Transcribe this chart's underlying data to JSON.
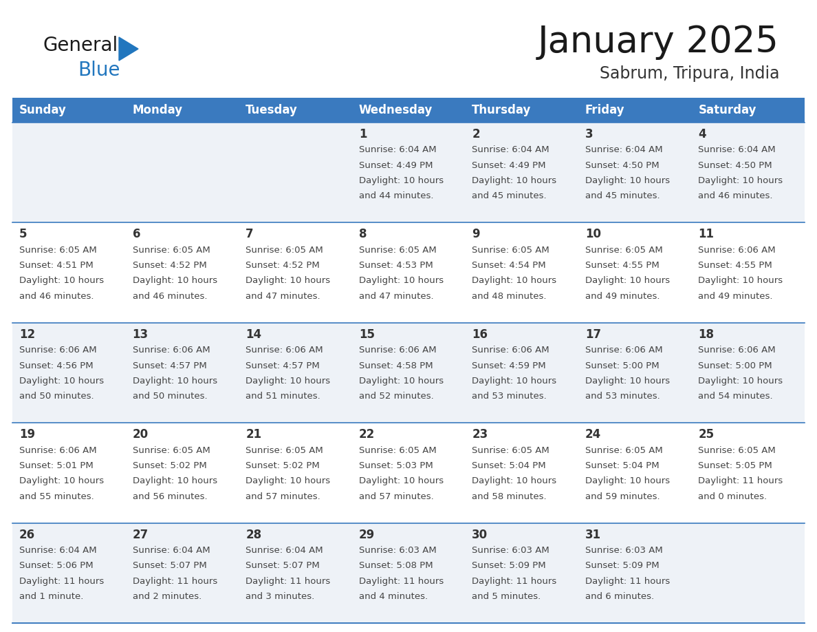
{
  "title": "January 2025",
  "subtitle": "Sabrum, Tripura, India",
  "header_color": "#3a7abf",
  "header_text_color": "#ffffff",
  "cell_bg_even": "#eef2f7",
  "cell_bg_odd": "#ffffff",
  "day_names": [
    "Sunday",
    "Monday",
    "Tuesday",
    "Wednesday",
    "Thursday",
    "Friday",
    "Saturday"
  ],
  "days": [
    {
      "day": 1,
      "col": 3,
      "row": 0,
      "sunrise": "6:04 AM",
      "sunset": "4:49 PM",
      "daylight": "10 hours and 44 minutes."
    },
    {
      "day": 2,
      "col": 4,
      "row": 0,
      "sunrise": "6:04 AM",
      "sunset": "4:49 PM",
      "daylight": "10 hours and 45 minutes."
    },
    {
      "day": 3,
      "col": 5,
      "row": 0,
      "sunrise": "6:04 AM",
      "sunset": "4:50 PM",
      "daylight": "10 hours and 45 minutes."
    },
    {
      "day": 4,
      "col": 6,
      "row": 0,
      "sunrise": "6:04 AM",
      "sunset": "4:50 PM",
      "daylight": "10 hours and 46 minutes."
    },
    {
      "day": 5,
      "col": 0,
      "row": 1,
      "sunrise": "6:05 AM",
      "sunset": "4:51 PM",
      "daylight": "10 hours and 46 minutes."
    },
    {
      "day": 6,
      "col": 1,
      "row": 1,
      "sunrise": "6:05 AM",
      "sunset": "4:52 PM",
      "daylight": "10 hours and 46 minutes."
    },
    {
      "day": 7,
      "col": 2,
      "row": 1,
      "sunrise": "6:05 AM",
      "sunset": "4:52 PM",
      "daylight": "10 hours and 47 minutes."
    },
    {
      "day": 8,
      "col": 3,
      "row": 1,
      "sunrise": "6:05 AM",
      "sunset": "4:53 PM",
      "daylight": "10 hours and 47 minutes."
    },
    {
      "day": 9,
      "col": 4,
      "row": 1,
      "sunrise": "6:05 AM",
      "sunset": "4:54 PM",
      "daylight": "10 hours and 48 minutes."
    },
    {
      "day": 10,
      "col": 5,
      "row": 1,
      "sunrise": "6:05 AM",
      "sunset": "4:55 PM",
      "daylight": "10 hours and 49 minutes."
    },
    {
      "day": 11,
      "col": 6,
      "row": 1,
      "sunrise": "6:06 AM",
      "sunset": "4:55 PM",
      "daylight": "10 hours and 49 minutes."
    },
    {
      "day": 12,
      "col": 0,
      "row": 2,
      "sunrise": "6:06 AM",
      "sunset": "4:56 PM",
      "daylight": "10 hours and 50 minutes."
    },
    {
      "day": 13,
      "col": 1,
      "row": 2,
      "sunrise": "6:06 AM",
      "sunset": "4:57 PM",
      "daylight": "10 hours and 50 minutes."
    },
    {
      "day": 14,
      "col": 2,
      "row": 2,
      "sunrise": "6:06 AM",
      "sunset": "4:57 PM",
      "daylight": "10 hours and 51 minutes."
    },
    {
      "day": 15,
      "col": 3,
      "row": 2,
      "sunrise": "6:06 AM",
      "sunset": "4:58 PM",
      "daylight": "10 hours and 52 minutes."
    },
    {
      "day": 16,
      "col": 4,
      "row": 2,
      "sunrise": "6:06 AM",
      "sunset": "4:59 PM",
      "daylight": "10 hours and 53 minutes."
    },
    {
      "day": 17,
      "col": 5,
      "row": 2,
      "sunrise": "6:06 AM",
      "sunset": "5:00 PM",
      "daylight": "10 hours and 53 minutes."
    },
    {
      "day": 18,
      "col": 6,
      "row": 2,
      "sunrise": "6:06 AM",
      "sunset": "5:00 PM",
      "daylight": "10 hours and 54 minutes."
    },
    {
      "day": 19,
      "col": 0,
      "row": 3,
      "sunrise": "6:06 AM",
      "sunset": "5:01 PM",
      "daylight": "10 hours and 55 minutes."
    },
    {
      "day": 20,
      "col": 1,
      "row": 3,
      "sunrise": "6:05 AM",
      "sunset": "5:02 PM",
      "daylight": "10 hours and 56 minutes."
    },
    {
      "day": 21,
      "col": 2,
      "row": 3,
      "sunrise": "6:05 AM",
      "sunset": "5:02 PM",
      "daylight": "10 hours and 57 minutes."
    },
    {
      "day": 22,
      "col": 3,
      "row": 3,
      "sunrise": "6:05 AM",
      "sunset": "5:03 PM",
      "daylight": "10 hours and 57 minutes."
    },
    {
      "day": 23,
      "col": 4,
      "row": 3,
      "sunrise": "6:05 AM",
      "sunset": "5:04 PM",
      "daylight": "10 hours and 58 minutes."
    },
    {
      "day": 24,
      "col": 5,
      "row": 3,
      "sunrise": "6:05 AM",
      "sunset": "5:04 PM",
      "daylight": "10 hours and 59 minutes."
    },
    {
      "day": 25,
      "col": 6,
      "row": 3,
      "sunrise": "6:05 AM",
      "sunset": "5:05 PM",
      "daylight": "11 hours and 0 minutes."
    },
    {
      "day": 26,
      "col": 0,
      "row": 4,
      "sunrise": "6:04 AM",
      "sunset": "5:06 PM",
      "daylight": "11 hours and 1 minute."
    },
    {
      "day": 27,
      "col": 1,
      "row": 4,
      "sunrise": "6:04 AM",
      "sunset": "5:07 PM",
      "daylight": "11 hours and 2 minutes."
    },
    {
      "day": 28,
      "col": 2,
      "row": 4,
      "sunrise": "6:04 AM",
      "sunset": "5:07 PM",
      "daylight": "11 hours and 3 minutes."
    },
    {
      "day": 29,
      "col": 3,
      "row": 4,
      "sunrise": "6:03 AM",
      "sunset": "5:08 PM",
      "daylight": "11 hours and 4 minutes."
    },
    {
      "day": 30,
      "col": 4,
      "row": 4,
      "sunrise": "6:03 AM",
      "sunset": "5:09 PM",
      "daylight": "11 hours and 5 minutes."
    },
    {
      "day": 31,
      "col": 5,
      "row": 4,
      "sunrise": "6:03 AM",
      "sunset": "5:09 PM",
      "daylight": "11 hours and 6 minutes."
    }
  ],
  "num_rows": 5,
  "logo_general_color": "#1a1a1a",
  "logo_blue_color": "#2176be",
  "logo_triangle_color": "#2176be",
  "divider_color": "#3a7abf",
  "title_color": "#1a1a1a",
  "subtitle_color": "#333333",
  "day_number_color": "#333333",
  "cell_text_color": "#444444",
  "title_fontsize": 38,
  "subtitle_fontsize": 17,
  "header_fontsize": 12,
  "day_num_fontsize": 12,
  "cell_text_fontsize": 9.5
}
